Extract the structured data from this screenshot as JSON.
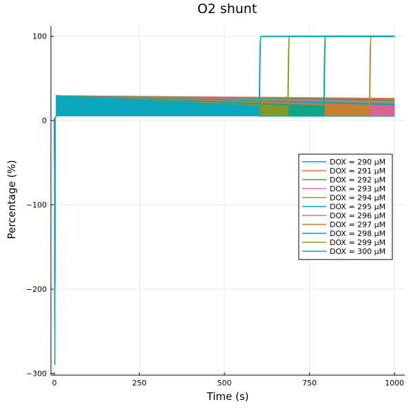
{
  "chart_data": {
    "type": "line",
    "title": "O2 shunt",
    "xlabel": "Time (s)",
    "ylabel": "Percentage (%)",
    "xlim": [
      -10,
      1030
    ],
    "ylim": [
      -302,
      112
    ],
    "xticks": [
      0,
      250,
      500,
      750,
      1000
    ],
    "xtick_labels": [
      "0",
      "250",
      "500",
      "750",
      "1000"
    ],
    "yticks": [
      -300,
      -200,
      -100,
      0,
      100
    ],
    "ytick_labels": [
      "−300",
      "−200",
      "−100",
      "0",
      "100"
    ],
    "grid": true,
    "legend_position": "right",
    "series": [
      {
        "name": "DOX = 290 μM",
        "color": "#009af9",
        "band": [
          [
            5,
            6,
            30
          ],
          [
            1000,
            6,
            26
          ]
        ],
        "switch_time": null
      },
      {
        "name": "DOX = 291 μM",
        "color": "#e26f46",
        "band": [
          [
            5,
            5,
            30
          ],
          [
            1000,
            5,
            27
          ]
        ],
        "switch_time": null
      },
      {
        "name": "DOX = 292 μM",
        "color": "#3da44d",
        "band": [
          [
            5,
            5,
            30
          ],
          [
            1000,
            5,
            25
          ]
        ],
        "switch_time": null
      },
      {
        "name": "DOX = 293 μM",
        "color": "#c271d2",
        "band": [
          [
            5,
            5,
            30
          ],
          [
            1000,
            5,
            23
          ]
        ],
        "switch_time": null
      },
      {
        "name": "DOX = 294 μM",
        "color": "#ac8e18",
        "band": [
          [
            5,
            5,
            30
          ],
          [
            1000,
            5,
            21
          ]
        ],
        "switch_time": null
      },
      {
        "name": "DOX = 295 μM",
        "color": "#00a9ad",
        "band": [
          [
            5,
            5,
            30
          ],
          [
            1000,
            5,
            20
          ]
        ],
        "switch_time": null
      },
      {
        "name": "DOX = 296 μM",
        "color": "#ed5e93",
        "band": [
          [
            5,
            5,
            30
          ],
          [
            1000,
            5,
            18
          ]
        ],
        "switch_time": 1010
      },
      {
        "name": "DOX = 297 μM",
        "color": "#c68225",
        "band": [
          [
            5,
            5,
            30
          ],
          [
            925,
            5,
            18
          ]
        ],
        "switch_time": 928
      },
      {
        "name": "DOX = 298 μM",
        "color": "#00a98d",
        "band": [
          [
            5,
            5,
            30
          ],
          [
            790,
            5,
            18
          ]
        ],
        "switch_time": 794
      },
      {
        "name": "DOX = 299 μM",
        "color": "#8e971d",
        "band": [
          [
            5,
            5,
            30
          ],
          [
            685,
            5,
            18
          ]
        ],
        "switch_time": 688
      },
      {
        "name": "DOX = 300 μM",
        "color": "#00a8cb",
        "band": [
          [
            5,
            5,
            30
          ],
          [
            600,
            5,
            18
          ]
        ],
        "switch_time": 604
      }
    ],
    "initial_min": -290,
    "saturation_value": 100,
    "baseline_value": 3
  }
}
